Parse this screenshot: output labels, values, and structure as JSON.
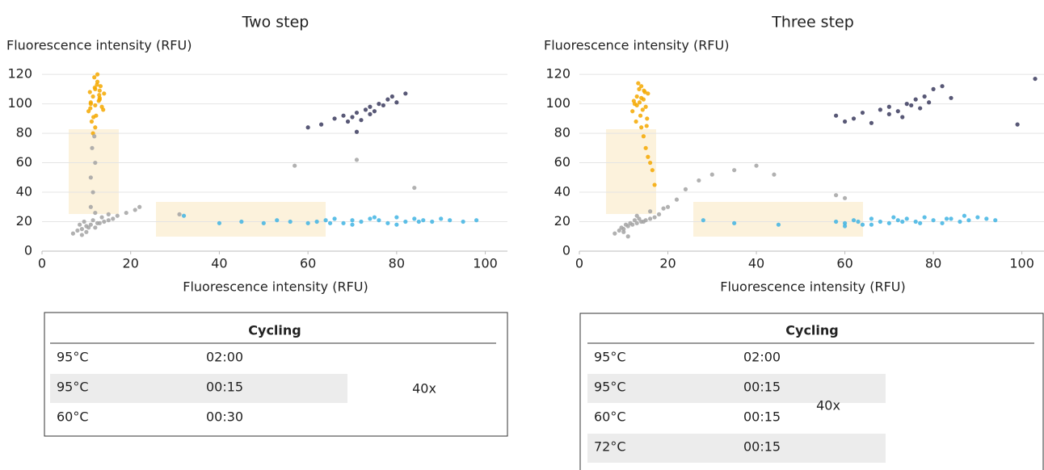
{
  "chart_data": [
    {
      "type": "scatter",
      "title": "Two step",
      "x_label": "Fluorescence intensity (RFU)",
      "y_label": "Fluorescence intensity (RFU)",
      "xlim": [
        0,
        105
      ],
      "ylim": [
        0,
        125
      ],
      "xticks": [
        0,
        20,
        40,
        60,
        80,
        100
      ],
      "yticks": [
        0,
        20,
        40,
        60,
        80,
        100,
        120
      ],
      "grid": true,
      "series": [
        {
          "color": "#f5a800",
          "x": [
            10.5,
            11,
            11.5,
            12,
            12.5,
            13,
            13.5,
            14,
            11.2,
            12.2,
            13.2,
            10.8,
            11.8,
            12.8,
            13.8,
            12,
            11.5,
            12.5,
            13,
            11,
            12,
            13,
            12.4,
            11.6,
            12.9,
            10.9,
            11.9
          ],
          "values": [
            95,
            100,
            105,
            110,
            115,
            103,
            98,
            107,
            88,
            92,
            112,
            108,
            118,
            102,
            96,
            84,
            80,
            120,
            109,
            101,
            99,
            104,
            113,
            91,
            106,
            97,
            111
          ]
        },
        {
          "color": "#a3a3a3",
          "x": [
            7,
            8,
            9,
            10,
            11,
            12,
            13,
            14,
            15,
            16,
            8.5,
            9.5,
            10.5,
            11.5,
            12.5,
            13.5,
            11,
            11.5,
            11,
            12,
            11.3,
            11.8,
            17,
            19,
            21,
            22,
            15,
            31,
            57,
            71,
            84,
            10,
            9,
            12
          ],
          "values": [
            12,
            14,
            15,
            17,
            18,
            16,
            19,
            20,
            21,
            22,
            18,
            20,
            16,
            21,
            19,
            23,
            30,
            40,
            50,
            60,
            70,
            78,
            24,
            26,
            28,
            30,
            25,
            25,
            58,
            62,
            43,
            13,
            11,
            26
          ]
        },
        {
          "color": "#3b3b5e",
          "x": [
            60,
            63,
            66,
            68,
            70,
            71,
            72,
            73,
            74,
            75,
            76,
            77,
            78,
            79,
            80,
            82,
            69,
            74,
            71
          ],
          "values": [
            84,
            86,
            90,
            92,
            91,
            94,
            89,
            96,
            98,
            95,
            100,
            99,
            103,
            105,
            101,
            107,
            88,
            93,
            81
          ]
        },
        {
          "color": "#41b4e3",
          "x": [
            32,
            40,
            45,
            50,
            53,
            56,
            60,
            62,
            64,
            66,
            68,
            70,
            72,
            74,
            76,
            78,
            80,
            82,
            84,
            86,
            88,
            90,
            92,
            95,
            98,
            70,
            75,
            80,
            85,
            65
          ],
          "values": [
            24,
            19,
            20,
            19,
            21,
            20,
            19,
            20,
            21,
            22,
            19,
            21,
            20,
            22,
            21,
            19,
            23,
            20,
            22,
            21,
            20,
            22,
            21,
            20,
            21,
            18,
            23,
            18,
            20,
            19
          ]
        }
      ]
    },
    {
      "type": "scatter",
      "title": "Three step",
      "x_label": "Fluorescence intensity (RFU)",
      "y_label": "Fluorescence intensity (RFU)",
      "xlim": [
        0,
        105
      ],
      "ylim": [
        0,
        125
      ],
      "xticks": [
        0,
        20,
        40,
        60,
        80,
        100
      ],
      "yticks": [
        0,
        20,
        40,
        60,
        80,
        100,
        120
      ],
      "grid": true,
      "series": [
        {
          "color": "#f5a800",
          "x": [
            12,
            12.5,
            13,
            13.5,
            14,
            14.5,
            15,
            15.5,
            12.8,
            13.8,
            14.8,
            12.3,
            13.3,
            14.3,
            15.3,
            14,
            14.5,
            15,
            15.5,
            16,
            13,
            14,
            16.5,
            17,
            15.2,
            13.6,
            14.6
          ],
          "values": [
            95,
            100,
            105,
            110,
            112,
            103,
            98,
            107,
            88,
            92,
            108,
            102,
            114,
            96,
            90,
            84,
            78,
            70,
            64,
            60,
            99,
            104,
            55,
            45,
            85,
            101,
            109
          ]
        },
        {
          "color": "#a3a3a3",
          "x": [
            8,
            9,
            10,
            11,
            12,
            13,
            14,
            15,
            16,
            17,
            9.5,
            10.5,
            11.5,
            12.5,
            13.5,
            14.5,
            18,
            20,
            22,
            24,
            27,
            30,
            35,
            40,
            44,
            58,
            60,
            11,
            13,
            16,
            19,
            10
          ],
          "values": [
            12,
            14,
            15,
            17,
            18,
            19,
            20,
            21,
            22,
            23,
            16,
            18,
            19,
            21,
            22,
            20,
            25,
            30,
            35,
            42,
            48,
            52,
            55,
            58,
            52,
            38,
            36,
            10,
            24,
            27,
            29,
            13
          ]
        },
        {
          "color": "#3b3b5e",
          "x": [
            58,
            60,
            62,
            64,
            66,
            68,
            70,
            72,
            74,
            75,
            76,
            77,
            78,
            79,
            80,
            82,
            84,
            70,
            73,
            99,
            103
          ],
          "values": [
            92,
            88,
            90,
            94,
            87,
            96,
            98,
            95,
            100,
            99,
            103,
            97,
            105,
            101,
            110,
            112,
            104,
            93,
            91,
            86,
            117
          ]
        },
        {
          "color": "#41b4e3",
          "x": [
            28,
            35,
            45,
            58,
            60,
            62,
            64,
            66,
            68,
            70,
            72,
            74,
            76,
            78,
            80,
            82,
            84,
            86,
            88,
            90,
            92,
            94,
            66,
            71,
            77,
            83,
            63,
            87,
            73,
            60
          ],
          "values": [
            21,
            19,
            18,
            20,
            19,
            21,
            18,
            22,
            20,
            19,
            21,
            22,
            20,
            23,
            21,
            19,
            22,
            20,
            21,
            23,
            22,
            21,
            18,
            23,
            19,
            22,
            20,
            24,
            20,
            17
          ]
        }
      ]
    }
  ],
  "tables": [
    {
      "header": "Cycling",
      "rows": [
        [
          "95°C",
          "02:00"
        ],
        [
          "95°C",
          "00:15"
        ],
        [
          "60°C",
          "00:30"
        ]
      ],
      "repeat": "40x"
    },
    {
      "header": "Cycling",
      "rows": [
        [
          "95°C",
          "02:00"
        ],
        [
          "95°C",
          "00:15"
        ],
        [
          "60°C",
          "00:15"
        ],
        [
          "72°C",
          "00:15"
        ]
      ],
      "repeat": "40x"
    }
  ]
}
